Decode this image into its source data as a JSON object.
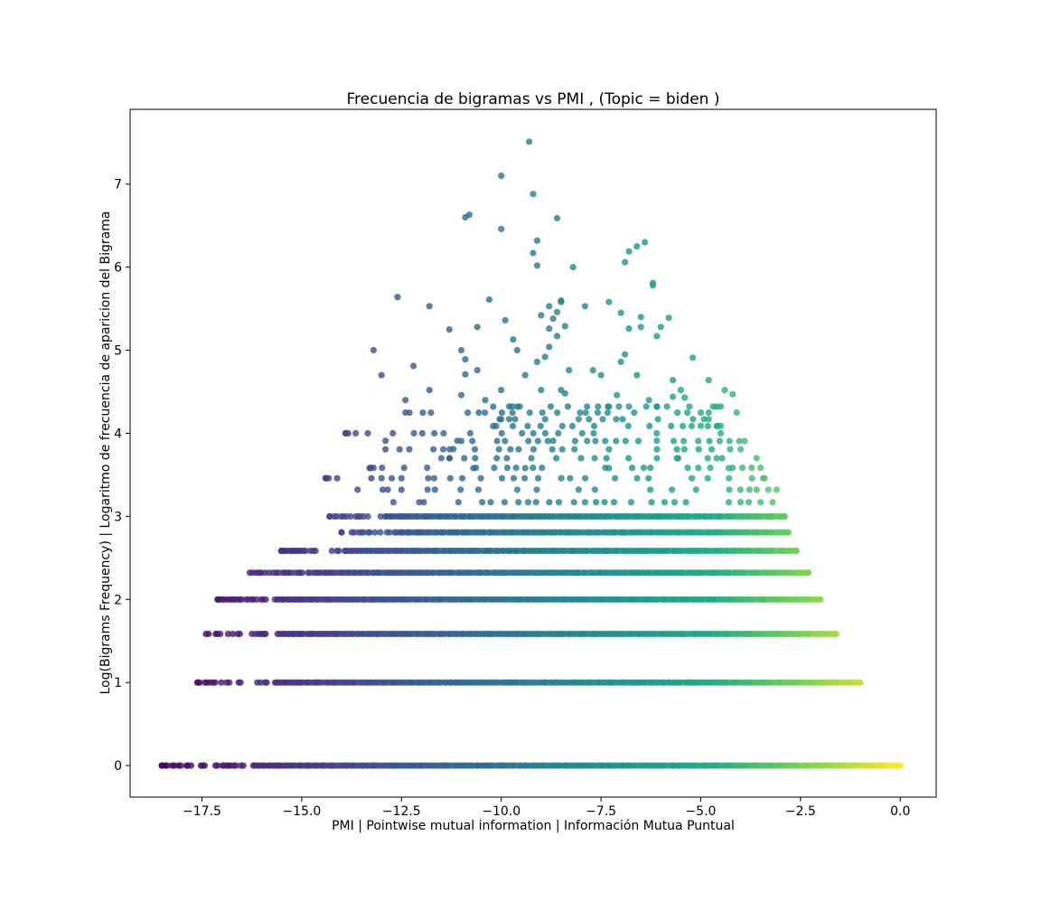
{
  "chart_data": {
    "type": "scatter",
    "title": "Frecuencia de bigramas vs PMI ,  (Topic = biden )",
    "xlabel": "PMI | Pointwise mutual information | Información Mutua Puntual",
    "ylabel": "Log(Bigrams Frequency) | Logaritmo de frecuencia de aparicion del Bigrama",
    "xlim": [
      -19.3,
      0.9
    ],
    "ylim": [
      -0.38,
      7.9
    ],
    "xticks": [
      -17.5,
      -15.0,
      -12.5,
      -10.0,
      -7.5,
      -5.0,
      -2.5,
      0.0
    ],
    "xtick_labels": [
      "−17.5",
      "−15.0",
      "−12.5",
      "−10.0",
      "−7.5",
      "−5.0",
      "−2.5",
      "0.0"
    ],
    "yticks": [
      0,
      1,
      2,
      3,
      4,
      5,
      6,
      7
    ],
    "ytick_labels": [
      "0",
      "1",
      "2",
      "3",
      "4",
      "5",
      "6",
      "7"
    ],
    "grid": false,
    "legend": "none",
    "colormap": "viridis",
    "color_by": "x",
    "point_alpha": 0.8,
    "dense_rows": [
      {
        "y": 0.0,
        "x_min": -18.5,
        "x_max": 0.0
      },
      {
        "y": 1.0,
        "x_min": -17.6,
        "x_max": -1.0
      },
      {
        "y": 1.585,
        "x_min": -17.4,
        "x_max": -1.6
      },
      {
        "y": 2.0,
        "x_min": -17.1,
        "x_max": -2.0
      },
      {
        "y": 2.322,
        "x_min": -16.3,
        "x_max": -2.3
      },
      {
        "y": 2.585,
        "x_min": -15.5,
        "x_max": -2.6
      },
      {
        "y": 2.807,
        "x_min": -14.0,
        "x_max": -2.8
      },
      {
        "y": 3.0,
        "x_min": -14.3,
        "x_max": -2.9
      },
      {
        "y": 3.17,
        "x_min": -12.7,
        "x_max": -3.2
      },
      {
        "y": 3.322,
        "x_min": -13.6,
        "x_max": -3.1
      },
      {
        "y": 3.459,
        "x_min": -14.4,
        "x_max": -3.4
      },
      {
        "y": 3.585,
        "x_min": -13.2,
        "x_max": -3.5
      },
      {
        "y": 3.7,
        "x_min": -11.5,
        "x_max": -3.6
      },
      {
        "y": 3.807,
        "x_min": -12.9,
        "x_max": -4.0
      },
      {
        "y": 3.907,
        "x_min": -11.0,
        "x_max": -3.9
      },
      {
        "y": 4.0,
        "x_min": -13.9,
        "x_max": -4.5
      },
      {
        "y": 4.087,
        "x_min": -10.2,
        "x_max": -4.6
      },
      {
        "y": 4.17,
        "x_min": -10.0,
        "x_max": -4.8
      },
      {
        "y": 4.248,
        "x_min": -12.3,
        "x_max": -5.0
      },
      {
        "y": 4.322,
        "x_min": -9.8,
        "x_max": -4.5
      }
    ],
    "points": [
      [
        -9.3,
        7.51
      ],
      [
        -10.0,
        7.1
      ],
      [
        -9.2,
        6.88
      ],
      [
        -10.9,
        6.6
      ],
      [
        -10.8,
        6.63
      ],
      [
        -10.0,
        6.46
      ],
      [
        -9.1,
        6.32
      ],
      [
        -9.2,
        6.17
      ],
      [
        -9.1,
        6.02
      ],
      [
        -8.6,
        6.59
      ],
      [
        -8.2,
        6.0
      ],
      [
        -6.9,
        6.06
      ],
      [
        -6.8,
        6.19
      ],
      [
        -6.6,
        6.25
      ],
      [
        -6.4,
        6.3
      ],
      [
        -6.2,
        5.81
      ],
      [
        -6.2,
        5.78
      ],
      [
        -12.6,
        5.64
      ],
      [
        -11.8,
        5.53
      ],
      [
        -10.3,
        5.61
      ],
      [
        -10.6,
        5.28
      ],
      [
        -9.9,
        5.36
      ],
      [
        -11.3,
        5.25
      ],
      [
        -9.0,
        5.42
      ],
      [
        -8.5,
        5.6
      ],
      [
        -8.5,
        5.58
      ],
      [
        -8.8,
        5.53
      ],
      [
        -8.6,
        5.46
      ],
      [
        -8.7,
        5.38
      ],
      [
        -8.4,
        5.29
      ],
      [
        -8.8,
        5.26
      ],
      [
        -7.9,
        5.53
      ],
      [
        -7.3,
        5.58
      ],
      [
        -7.0,
        5.45
      ],
      [
        -6.5,
        5.4
      ],
      [
        -6.5,
        5.28
      ],
      [
        -6.0,
        5.28
      ],
      [
        -5.8,
        5.39
      ],
      [
        -6.1,
        5.17
      ],
      [
        -6.8,
        5.26
      ],
      [
        -13.2,
        5.0
      ],
      [
        -13.0,
        4.7
      ],
      [
        -12.2,
        4.81
      ],
      [
        -11.8,
        4.52
      ],
      [
        -11.0,
        5.0
      ],
      [
        -10.9,
        4.89
      ],
      [
        -10.9,
        4.71
      ],
      [
        -10.6,
        4.76
      ],
      [
        -10.4,
        4.4
      ],
      [
        -9.7,
        5.13
      ],
      [
        -9.6,
        5.0
      ],
      [
        -9.4,
        4.7
      ],
      [
        -9.1,
        4.86
      ],
      [
        -8.9,
        4.92
      ],
      [
        -8.8,
        5.04
      ],
      [
        -8.6,
        5.17
      ],
      [
        -8.3,
        4.76
      ],
      [
        -8.4,
        4.48
      ],
      [
        -7.7,
        4.76
      ],
      [
        -7.5,
        4.7
      ],
      [
        -7.0,
        4.86
      ],
      [
        -6.9,
        4.95
      ],
      [
        -6.6,
        4.7
      ],
      [
        -5.7,
        4.64
      ],
      [
        -5.2,
        4.91
      ],
      [
        -4.8,
        4.64
      ],
      [
        -4.4,
        4.52
      ],
      [
        -4.2,
        4.47
      ],
      [
        -7.3,
        4.32
      ],
      [
        -7.1,
        4.46
      ],
      [
        -9.0,
        4.52
      ],
      [
        -12.4,
        4.4
      ],
      [
        -12.4,
        4.25
      ],
      [
        -10.0,
        4.52
      ],
      [
        -10.2,
        4.32
      ],
      [
        -11.0,
        4.46
      ],
      [
        -8.5,
        4.52
      ],
      [
        -5.5,
        4.52
      ],
      [
        -5.4,
        4.43
      ],
      [
        -5.7,
        4.44
      ],
      [
        -4.1,
        4.25
      ],
      [
        -13.9,
        4.0
      ],
      [
        -14.4,
        3.46
      ],
      [
        -14.3,
        3.0
      ],
      [
        -6.3,
        4.4
      ],
      [
        -6.1,
        4.32
      ],
      [
        -9.6,
        4.32
      ],
      [
        -11.1,
        3.91
      ],
      [
        -11.2,
        3.81
      ],
      [
        -12.9,
        3.91
      ],
      [
        -13.3,
        3.58
      ],
      [
        -13.0,
        3.46
      ],
      [
        -12.5,
        3.32
      ],
      [
        -11.3,
        3.7
      ],
      [
        -10.7,
        3.58
      ],
      [
        -9.4,
        3.58
      ],
      [
        -8.7,
        3.91
      ],
      [
        -8.0,
        3.7
      ],
      [
        -7.3,
        3.58
      ],
      [
        -6.1,
        3.91
      ],
      [
        -5.6,
        3.7
      ],
      [
        -4.6,
        3.7
      ],
      [
        -4.3,
        3.58
      ],
      [
        -3.6,
        3.32
      ],
      [
        -3.5,
        3.17
      ],
      [
        -3.3,
        3.0
      ],
      [
        -5.0,
        4.09
      ],
      [
        -4.8,
        4.25
      ],
      [
        -4.6,
        4.32
      ],
      [
        -4.5,
        4.09
      ],
      [
        -7.8,
        4.17
      ],
      [
        -8.9,
        4.17
      ],
      [
        -9.8,
        4.17
      ]
    ]
  }
}
